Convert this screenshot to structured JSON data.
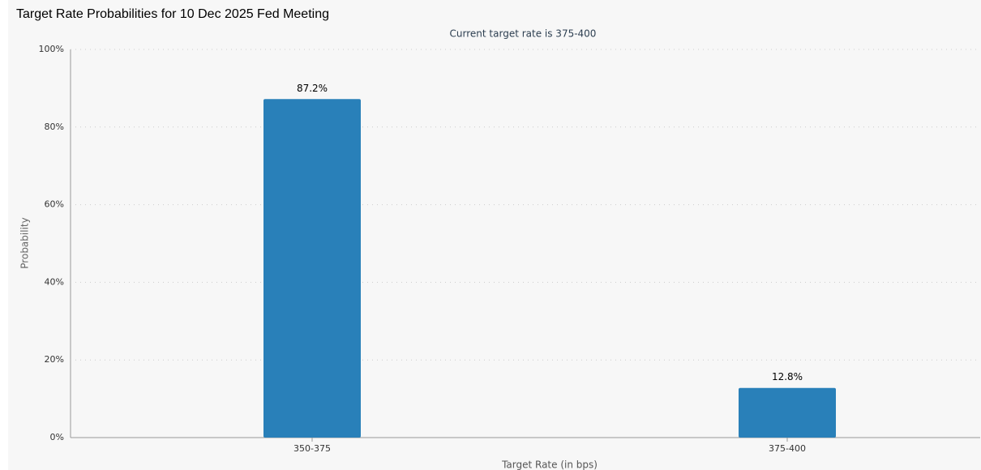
{
  "chart_data": {
    "type": "bar",
    "title": "Target Rate Probabilities for 10 Dec 2025 Fed Meeting",
    "subtitle": "Current target rate is 375-400",
    "x_label": "Target Rate (in bps)",
    "y_label": "Probability",
    "categories": [
      "350-375",
      "375-400"
    ],
    "values": [
      87.2,
      12.8
    ],
    "value_labels": [
      "87.2%",
      "12.8%"
    ],
    "color": "#2980b9",
    "ylim": [
      0,
      100
    ],
    "yticks": [
      {
        "value": 0,
        "label": "0%"
      },
      {
        "value": 20,
        "label": "20%"
      },
      {
        "value": 40,
        "label": "40%"
      },
      {
        "value": 60,
        "label": "60%"
      },
      {
        "value": 80,
        "label": "80%"
      },
      {
        "value": 100,
        "label": "100%"
      }
    ],
    "grid": true
  }
}
